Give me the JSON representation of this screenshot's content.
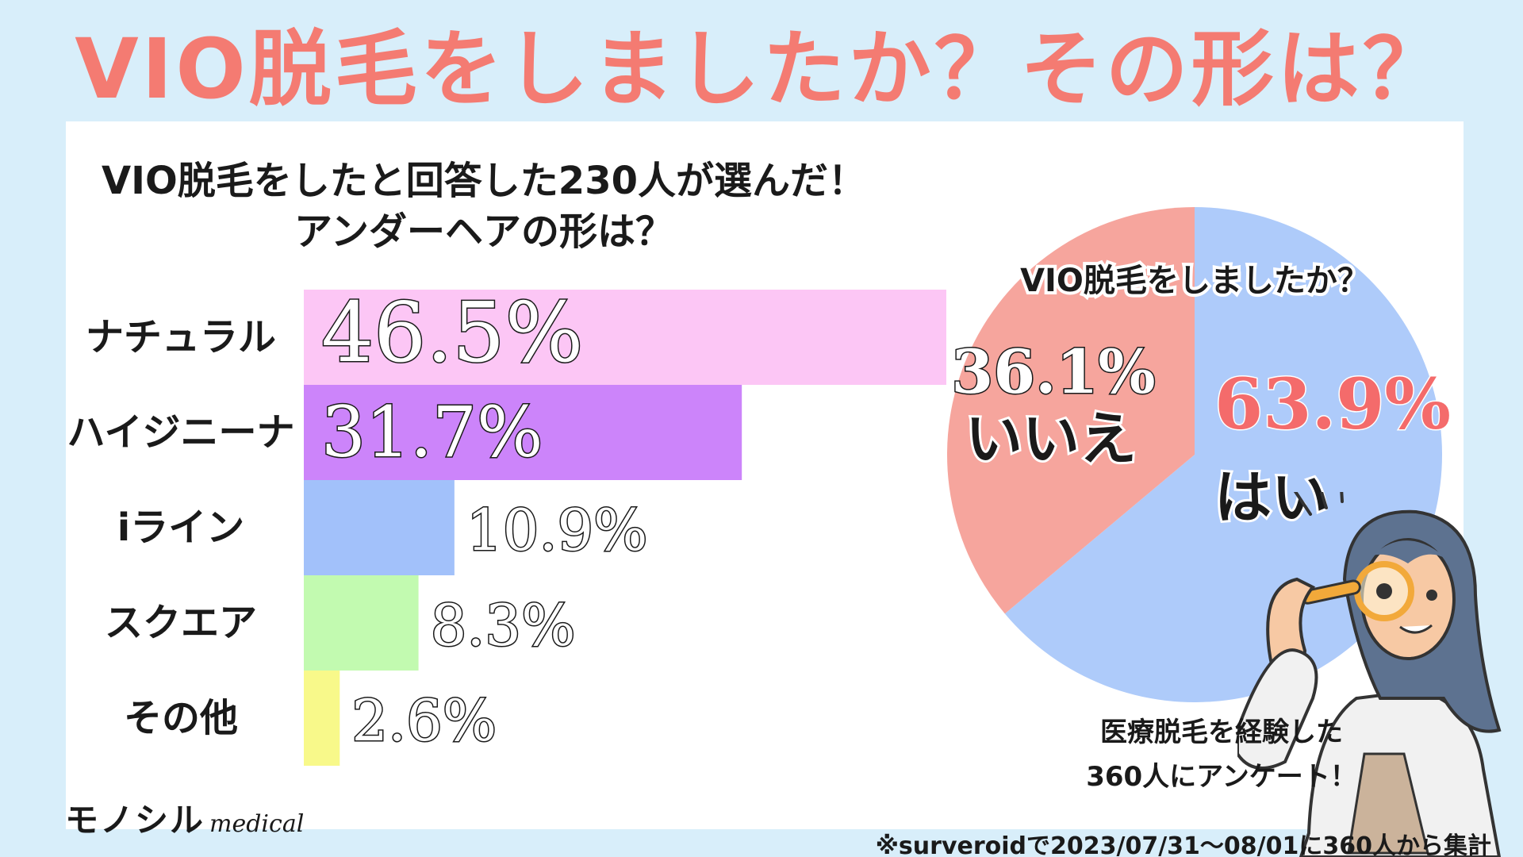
{
  "header": {
    "title": "VIO脱毛をしましたか？その形は？"
  },
  "bar_section": {
    "title_line1": "VIO脱毛をしたと回答した230人が選んだ！",
    "title_line2": "アンダーヘアの形は？"
  },
  "pie_section": {
    "title": "VIO脱毛をしましたか？"
  },
  "survey_note": {
    "line1": "医療脱毛を経験した",
    "line2": "360人にアンケート！"
  },
  "logo": {
    "text": "モノシル",
    "sub": "medical"
  },
  "footnote": "※surveroidで2023/07/31～08/01に360人から集計",
  "chart_data": [
    {
      "type": "bar",
      "orientation": "horizontal",
      "title": "VIO脱毛をしたと回答した230人が選んだ！アンダーヘアの形は？",
      "categories": [
        "ナチュラル",
        "ハイジニーナ",
        "iライン",
        "スクエア",
        "その他"
      ],
      "values": [
        46.5,
        31.7,
        10.9,
        8.3,
        2.6
      ],
      "value_labels": [
        "46.5%",
        "31.7%",
        "10.9%",
        "8.3%",
        "2.6%"
      ],
      "colors": [
        "#fcc6f5",
        "#cc84fa",
        "#a2c1fa",
        "#c2fab0",
        "#f8f98a"
      ],
      "grid": false
    },
    {
      "type": "pie",
      "title": "VIO脱毛をしましたか？",
      "labels": [
        "はい",
        "いいえ"
      ],
      "values": [
        63.9,
        36.1
      ],
      "value_labels": [
        "63.9%",
        "36.1%"
      ],
      "colors": [
        "#aecbfa",
        "#f6a59d"
      ],
      "label_colors": [
        "#f46b6b",
        "#ffffff"
      ]
    }
  ]
}
